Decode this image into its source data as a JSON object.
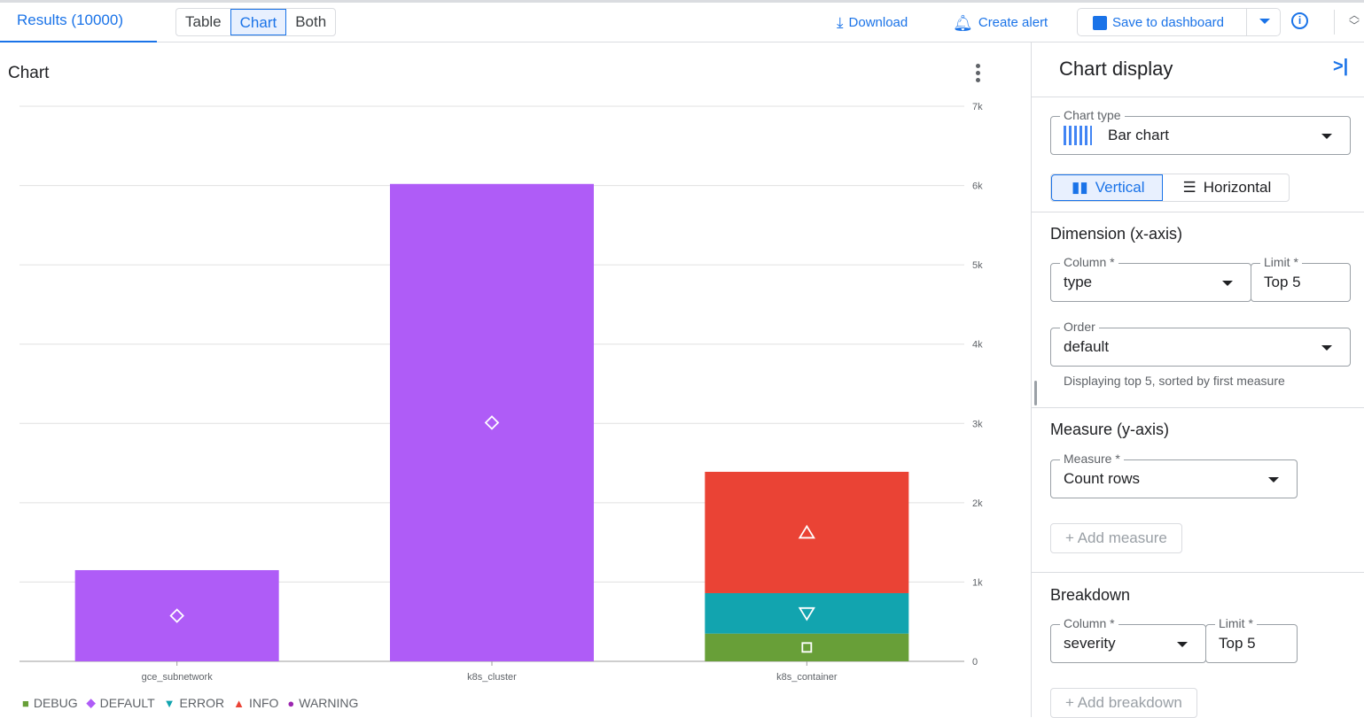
{
  "topbar": {
    "results_tab": "Results (10000)",
    "view_modes": [
      "Table",
      "Chart",
      "Both"
    ],
    "active_view": "Chart",
    "download": "Download",
    "create_alert": "Create alert",
    "save_to_dashboard": "Save to dashboard",
    "accent": "#1a73e8"
  },
  "chart_panel": {
    "title": "Chart"
  },
  "chart_data": {
    "type": "bar",
    "stacked": true,
    "categories": [
      "gce_subnetwork",
      "k8s_cluster",
      "k8s_container"
    ],
    "series": [
      {
        "name": "DEBUG",
        "color": "#689f38",
        "marker": "square",
        "values": [
          0,
          0,
          350
        ]
      },
      {
        "name": "DEFAULT",
        "color": "#af5cf7",
        "marker": "diamond",
        "values": [
          1150,
          6020,
          0
        ]
      },
      {
        "name": "ERROR",
        "color": "#12a4af",
        "marker": "triangle-down",
        "values": [
          0,
          0,
          510
        ]
      },
      {
        "name": "INFO",
        "color": "#ea4335",
        "marker": "triangle-up",
        "values": [
          0,
          0,
          1530
        ]
      },
      {
        "name": "WARNING",
        "color": "#9c27b0",
        "marker": "semicircle",
        "values": [
          0,
          0,
          0
        ]
      }
    ],
    "yticks": [
      "0",
      "1k",
      "2k",
      "3k",
      "4k",
      "5k",
      "6k",
      "7k"
    ],
    "ylim": [
      0,
      7000
    ],
    "grid": true,
    "legend": "bottom-left",
    "yaxis_side": "right"
  },
  "side": {
    "title": "Chart display",
    "chart_type_label": "Chart type",
    "chart_type": "Bar chart",
    "vertical": "Vertical",
    "horizontal": "Horizontal",
    "dimension_title": "Dimension (x-axis)",
    "column_label": "Column *",
    "dimension_column": "type",
    "limit_label": "Limit *",
    "dimension_limit": "Top 5",
    "order_label": "Order",
    "order": "default",
    "hint": "Displaying top 5, sorted by first measure",
    "measure_title": "Measure (y-axis)",
    "measure_label": "Measure *",
    "measure": "Count rows",
    "add_measure": "Add measure",
    "breakdown_title": "Breakdown",
    "breakdown_column": "severity",
    "breakdown_limit": "Top 5",
    "add_breakdown": "Add breakdown"
  }
}
